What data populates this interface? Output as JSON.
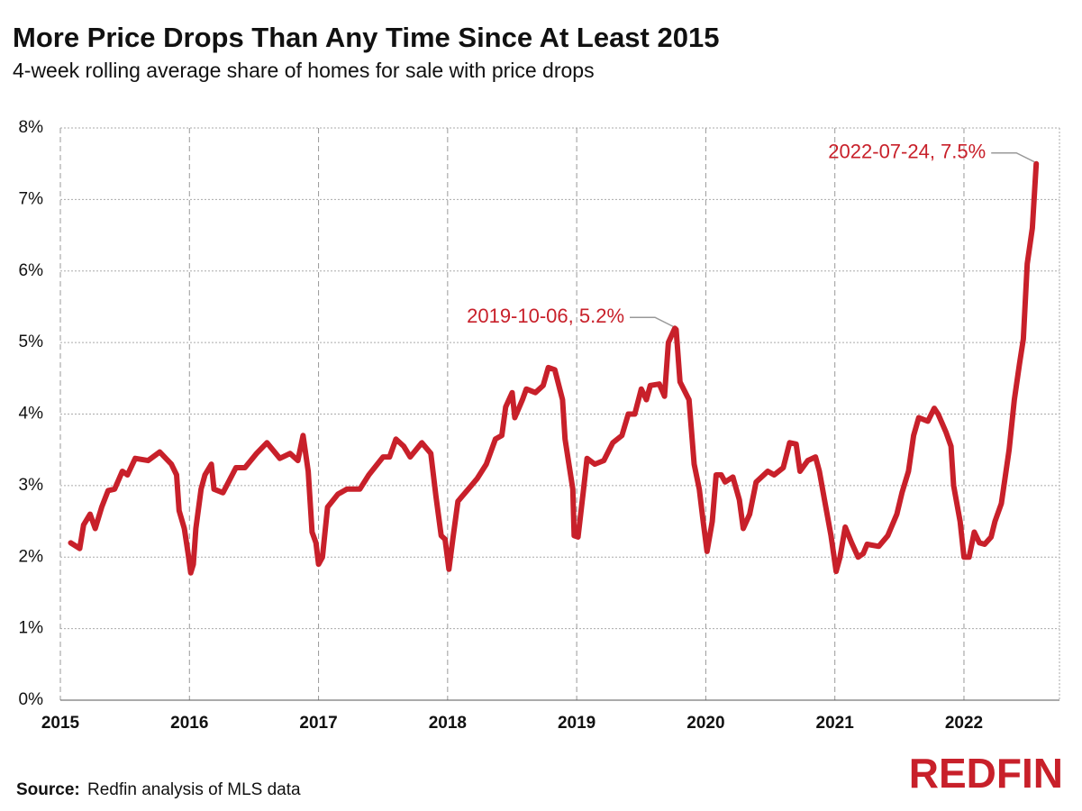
{
  "chart_data": {
    "type": "line",
    "title": "More Price Drops Than Any Time Since At Least 2015",
    "subtitle": "4-week rolling average share of homes for sale with price drops",
    "source_label": "Source:",
    "source": "Redfin analysis of MLS data",
    "logo": "REDFIN",
    "x": [
      2015.08,
      2015.15,
      2015.18,
      2015.23,
      2015.27,
      2015.32,
      2015.37,
      2015.42,
      2015.48,
      2015.52,
      2015.58,
      2015.68,
      2015.77,
      2015.86,
      2015.9,
      2015.92,
      2015.96,
      2015.99,
      2016.01,
      2016.03,
      2016.05,
      2016.09,
      2016.12,
      2016.17,
      2016.19,
      2016.26,
      2016.36,
      2016.43,
      2016.52,
      2016.6,
      2016.7,
      2016.78,
      2016.84,
      2016.88,
      2016.92,
      2016.95,
      2016.98,
      2017.0,
      2017.03,
      2017.07,
      2017.15,
      2017.22,
      2017.32,
      2017.39,
      2017.5,
      2017.55,
      2017.6,
      2017.66,
      2017.71,
      2017.8,
      2017.87,
      2017.91,
      2017.95,
      2017.98,
      2018.01,
      2018.04,
      2018.08,
      2018.16,
      2018.23,
      2018.3,
      2018.37,
      2018.42,
      2018.45,
      2018.5,
      2018.52,
      2018.58,
      2018.61,
      2018.68,
      2018.74,
      2018.78,
      2018.83,
      2018.89,
      2018.91,
      2018.94,
      2018.97,
      2018.98,
      2019.01,
      2019.05,
      2019.08,
      2019.14,
      2019.21,
      2019.28,
      2019.35,
      2019.4,
      2019.45,
      2019.5,
      2019.54,
      2019.57,
      2019.64,
      2019.68,
      2019.71,
      2019.76,
      2019.77,
      2019.8,
      2019.87,
      2019.91,
      2019.95,
      2019.98,
      2020.01,
      2020.05,
      2020.08,
      2020.12,
      2020.15,
      2020.21,
      2020.26,
      2020.29,
      2020.34,
      2020.39,
      2020.48,
      2020.53,
      2020.6,
      2020.65,
      2020.7,
      2020.73,
      2020.79,
      2020.85,
      2020.88,
      2020.92,
      2020.97,
      2021.01,
      2021.04,
      2021.08,
      2021.13,
      2021.18,
      2021.22,
      2021.25,
      2021.34,
      2021.41,
      2021.48,
      2021.52,
      2021.57,
      2021.61,
      2021.65,
      2021.72,
      2021.77,
      2021.8,
      2021.86,
      2021.9,
      2021.92,
      2021.97,
      2022.0,
      2022.04,
      2022.08,
      2022.12,
      2022.16,
      2022.21,
      2022.24,
      2022.29,
      2022.35,
      2022.39,
      2022.43,
      2022.46,
      2022.49,
      2022.53,
      2022.56
    ],
    "series": [
      {
        "name": "Share of homes with price drops",
        "color": "#c8202a",
        "values": [
          2.2,
          2.12,
          2.45,
          2.6,
          2.4,
          2.7,
          2.93,
          2.95,
          3.2,
          3.15,
          3.38,
          3.35,
          3.47,
          3.3,
          3.15,
          2.65,
          2.4,
          2.05,
          1.78,
          1.9,
          2.4,
          2.95,
          3.15,
          3.3,
          2.95,
          2.9,
          3.25,
          3.25,
          3.45,
          3.6,
          3.38,
          3.45,
          3.35,
          3.7,
          3.2,
          2.35,
          2.2,
          1.9,
          2.0,
          2.7,
          2.88,
          2.95,
          2.95,
          3.15,
          3.4,
          3.4,
          3.65,
          3.55,
          3.4,
          3.6,
          3.45,
          2.85,
          2.3,
          2.25,
          1.83,
          2.25,
          2.78,
          2.95,
          3.1,
          3.3,
          3.65,
          3.7,
          4.1,
          4.3,
          3.95,
          4.2,
          4.35,
          4.3,
          4.4,
          4.65,
          4.62,
          4.2,
          3.65,
          3.3,
          2.95,
          2.3,
          2.28,
          2.9,
          3.38,
          3.3,
          3.35,
          3.6,
          3.7,
          4.0,
          4.0,
          4.35,
          4.2,
          4.4,
          4.42,
          4.25,
          5.0,
          5.2,
          5.18,
          4.45,
          4.2,
          3.3,
          2.95,
          2.5,
          2.08,
          2.5,
          3.15,
          3.15,
          3.05,
          3.12,
          2.8,
          2.4,
          2.6,
          3.05,
          3.2,
          3.15,
          3.25,
          3.6,
          3.58,
          3.2,
          3.35,
          3.4,
          3.2,
          2.8,
          2.3,
          1.8,
          2.0,
          2.42,
          2.2,
          2.0,
          2.05,
          2.18,
          2.15,
          2.3,
          2.6,
          2.9,
          3.2,
          3.7,
          3.95,
          3.9,
          4.08,
          4.0,
          3.75,
          3.55,
          3.0,
          2.5,
          2.0,
          2.0,
          2.35,
          2.2,
          2.18,
          2.28,
          2.5,
          2.75,
          3.5,
          4.2,
          4.7,
          5.05,
          6.1,
          6.6,
          7.5
        ]
      }
    ],
    "annotations": [
      {
        "text": "2019-10-06, 5.2%",
        "x": 2019.76,
        "y": 5.2
      },
      {
        "text": "2022-07-24, 7.5%",
        "x": 2022.56,
        "y": 7.5
      }
    ],
    "xlim": [
      2015,
      2022.74
    ],
    "xticks": [
      2015,
      2016,
      2017,
      2018,
      2019,
      2020,
      2021,
      2022
    ],
    "ylim": [
      0,
      8
    ],
    "yticks": [
      {
        "value": 0,
        "label": "0%"
      },
      {
        "value": 1,
        "label": "1%"
      },
      {
        "value": 2,
        "label": "2%"
      },
      {
        "value": 3,
        "label": "3%"
      },
      {
        "value": 4,
        "label": "4%"
      },
      {
        "value": 5,
        "label": "5%"
      },
      {
        "value": 6,
        "label": "6%"
      },
      {
        "value": 7,
        "label": "7%"
      },
      {
        "value": 8,
        "label": "8%"
      }
    ],
    "grid": true
  }
}
